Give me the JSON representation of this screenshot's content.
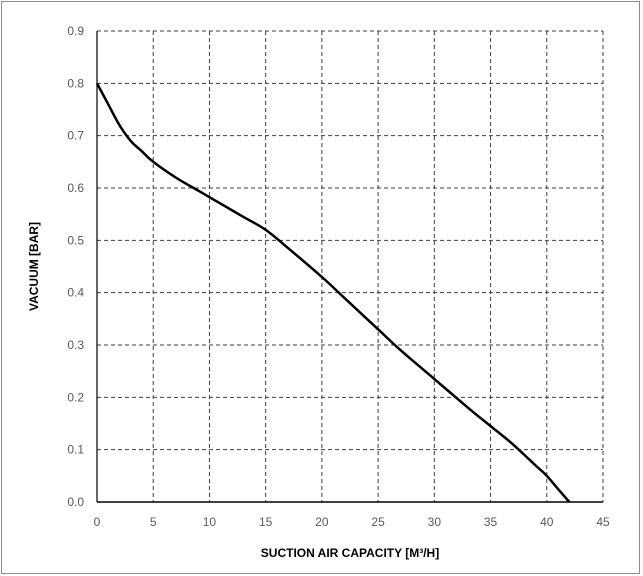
{
  "chart_data": {
    "type": "line",
    "title": "",
    "xlabel": "SUCTION AIR CAPACITY [M³/H]",
    "ylabel": "VACUUM [BAR]",
    "xlim": [
      0,
      45
    ],
    "ylim": [
      0,
      0.9
    ],
    "x_ticks": [
      "0",
      "5",
      "10",
      "15",
      "20",
      "25",
      "30",
      "35",
      "40",
      "45"
    ],
    "y_ticks": [
      "0.0",
      "0.1",
      "0.2",
      "0.3",
      "0.4",
      "0.5",
      "0.6",
      "0.7",
      "0.8",
      "0.9"
    ],
    "grid": true,
    "grid_style": "dashed",
    "legend": "none",
    "series": [
      {
        "color": "#000000",
        "x": [
          0,
          1,
          2,
          3,
          4,
          5,
          7,
          9,
          11,
          13,
          15,
          17,
          20,
          22,
          25,
          27,
          30,
          33,
          35,
          37,
          39,
          40,
          41,
          42
        ],
        "y": [
          0.8,
          0.76,
          0.72,
          0.69,
          0.67,
          0.65,
          0.62,
          0.595,
          0.57,
          0.545,
          0.52,
          0.485,
          0.43,
          0.39,
          0.33,
          0.29,
          0.235,
          0.18,
          0.145,
          0.11,
          0.07,
          0.05,
          0.025,
          0.0
        ]
      }
    ]
  }
}
